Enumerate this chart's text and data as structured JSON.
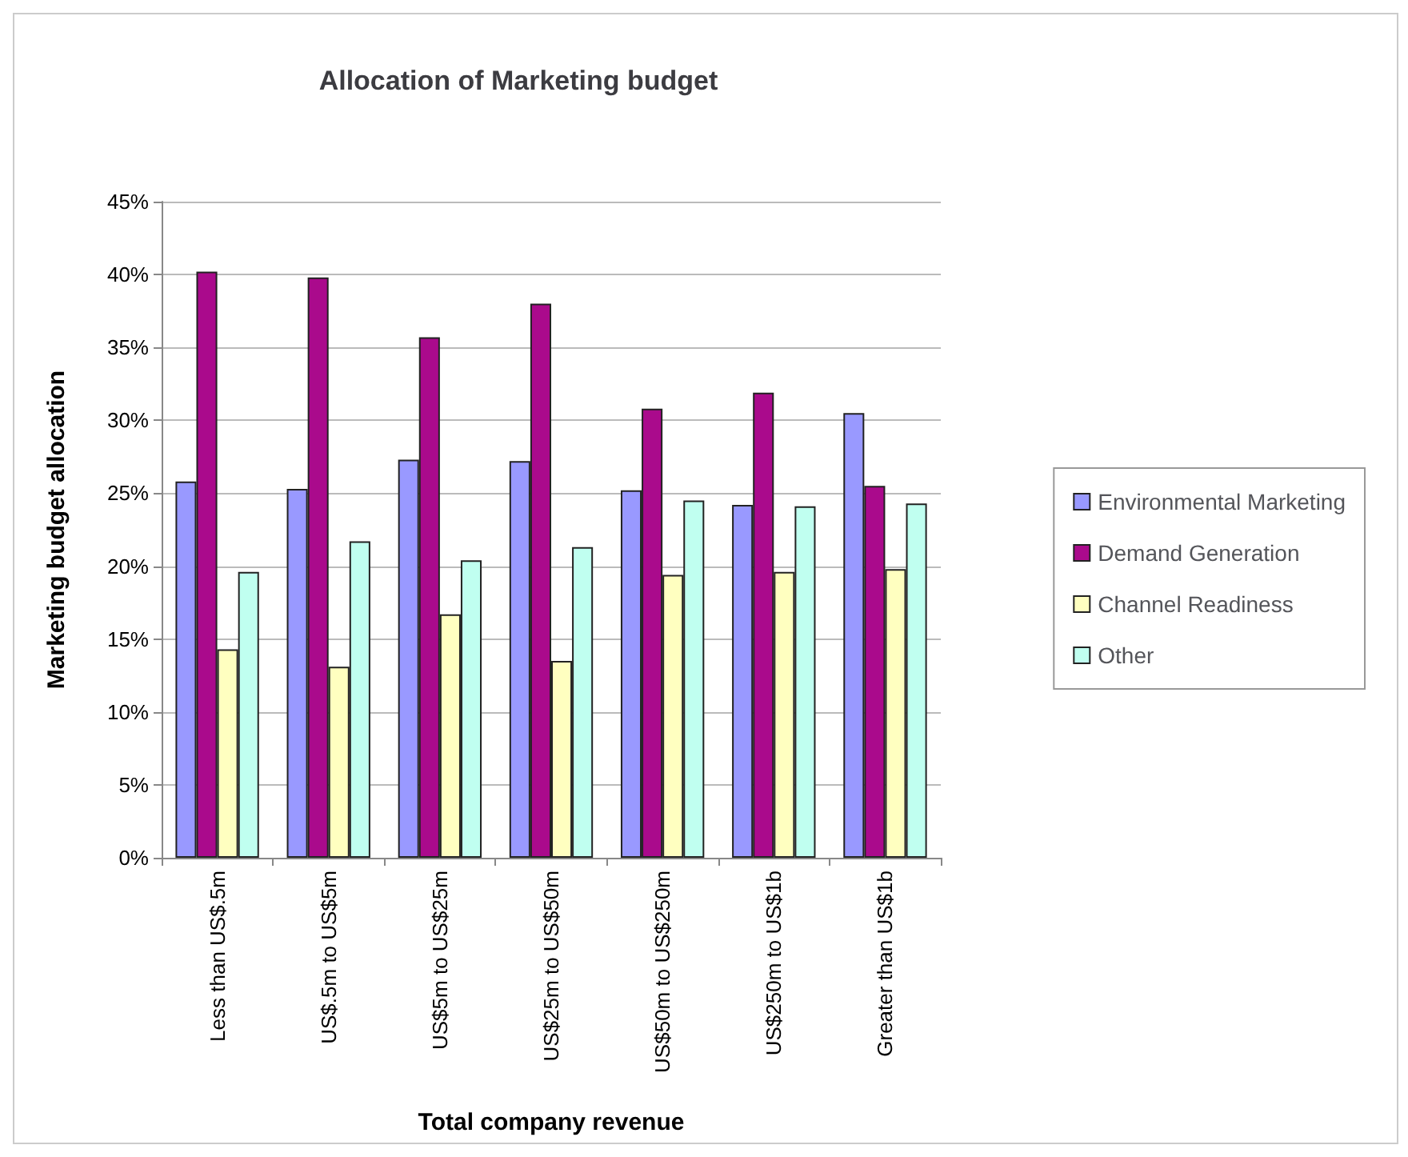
{
  "chart_data": {
    "type": "bar",
    "title": "Allocation of Marketing budget",
    "xlabel": "Total company revenue",
    "ylabel": "Marketing budget allocation",
    "categories": [
      "Less than US$.5m",
      "US$.5m to US$5m",
      "US$5m to US$25m",
      "US$25m to US$50m",
      "US$50m to US$250m",
      "US$250m to US$1b",
      "Greater than US$1b"
    ],
    "series": [
      {
        "name": "Environmental Marketing",
        "color": "#9999ff",
        "values": [
          25.8,
          25.3,
          27.3,
          27.2,
          25.2,
          24.2,
          30.5
        ]
      },
      {
        "name": "Demand Generation",
        "color": "#aa0a8c",
        "values": [
          40.2,
          39.8,
          35.7,
          38.0,
          30.8,
          31.9,
          25.5
        ]
      },
      {
        "name": "Channel Readiness",
        "color": "#ffffc0",
        "values": [
          14.3,
          13.1,
          16.7,
          13.5,
          19.4,
          19.6,
          19.8
        ]
      },
      {
        "name": "Other",
        "color": "#c0fff0",
        "values": [
          19.6,
          21.7,
          20.4,
          21.3,
          24.5,
          24.1,
          24.3
        ]
      }
    ],
    "ylim": [
      0,
      45
    ],
    "yticks": [
      {
        "value": 0,
        "label": "0%"
      },
      {
        "value": 5,
        "label": "5%"
      },
      {
        "value": 10,
        "label": "10%"
      },
      {
        "value": 15,
        "label": "15%"
      },
      {
        "value": 20,
        "label": "20%"
      },
      {
        "value": 25,
        "label": "25%"
      },
      {
        "value": 30,
        "label": "30%"
      },
      {
        "value": 35,
        "label": "35%"
      },
      {
        "value": 40,
        "label": "40%"
      },
      {
        "value": 45,
        "label": "45%"
      }
    ],
    "grid": "y",
    "legend": "right"
  }
}
